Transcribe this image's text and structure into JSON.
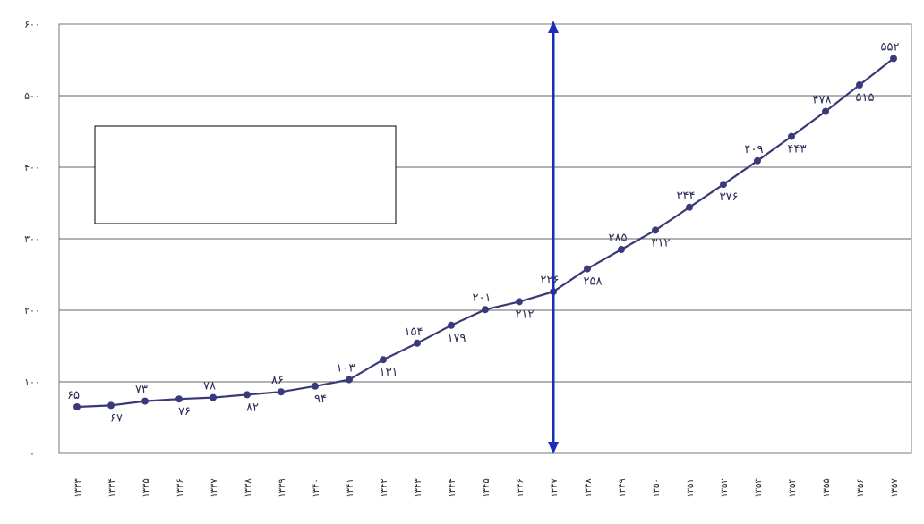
{
  "chart_data": {
    "type": "line",
    "title": "",
    "xlabel": "",
    "ylabel": "",
    "ylim": [
      0,
      600
    ],
    "y_ticks": [
      "۰",
      "۱۰۰",
      "۲۰۰",
      "۳۰۰",
      "۴۰۰",
      "۵۰۰",
      "۶۰۰"
    ],
    "grid": true,
    "categories": [
      "۱۳۳۳",
      "۱۳۳۴",
      "۱۳۳۵",
      "۱۳۳۶",
      "۱۳۳۷",
      "۱۳۳۸",
      "۱۳۳۹",
      "۱۳۴۰",
      "۱۳۴۱",
      "۱۳۴۲",
      "۱۳۴۳",
      "۱۳۴۴",
      "۱۳۴۵",
      "۱۳۴۶",
      "۱۳۴۷",
      "۱۳۴۸",
      "۱۳۴۹",
      "۱۳۵۰",
      "۱۳۵۱",
      "۱۳۵۲",
      "۱۳۵۳",
      "۱۳۵۴",
      "۱۳۵۵",
      "۱۳۵۶",
      "۱۳۵۷"
    ],
    "values": [
      65,
      67,
      73,
      76,
      78,
      82,
      86,
      94,
      103,
      131,
      154,
      179,
      201,
      212,
      226,
      258,
      285,
      312,
      344,
      376,
      409,
      443,
      478,
      515,
      552
    ],
    "value_labels": [
      "۶۵",
      "۶۷",
      "۷۳",
      "۷۶",
      "۷۸",
      "۸۲",
      "۸۶",
      "۹۴",
      "۱۰۳",
      "۱۳۱",
      "۱۵۴",
      "۱۷۹",
      "۲۰۱",
      "۲۱۲",
      "۲۲۶",
      "۲۵۸",
      "۲۸۵",
      "۳۱۲",
      "۳۴۴",
      "۳۷۶",
      "۴۰۹",
      "۴۴۳",
      "۴۷۸",
      "۵۱۵",
      "۵۵۲"
    ],
    "label_positions": [
      "above",
      "below",
      "above",
      "below",
      "above",
      "below",
      "above",
      "below",
      "above",
      "below",
      "above",
      "below",
      "above",
      "below",
      "above",
      "below",
      "above",
      "below",
      "above",
      "below",
      "above",
      "below",
      "above",
      "below",
      "above"
    ],
    "vertical_marker": {
      "category_index": 14,
      "color": "#1a2fb5"
    },
    "line_color": "#3a3a7a"
  }
}
